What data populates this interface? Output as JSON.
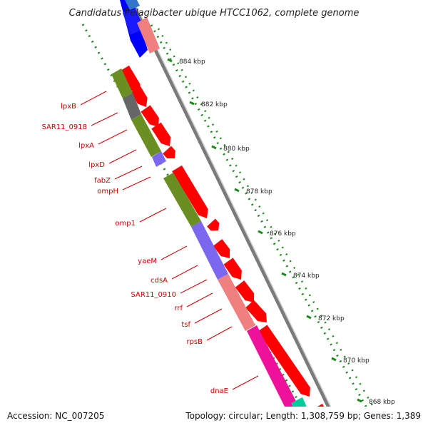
{
  "title": "Candidatus Pelagibacter ubique HTCC1062, complete genome",
  "footer": {
    "accession": "Accession: NC_007205",
    "summary": "Topology: circular; Length: 1,308,759 bp; Genes: 1,389"
  },
  "ticks": [
    {
      "label": "884 kbp"
    },
    {
      "label": "882 kbp"
    },
    {
      "label": "880 kbp"
    },
    {
      "label": "878 kbp"
    },
    {
      "label": "876 kbp"
    },
    {
      "label": "874 kbp"
    },
    {
      "label": "872 kbp"
    },
    {
      "label": "870 kbp"
    },
    {
      "label": "868 kbp"
    }
  ],
  "gene_labels": [
    {
      "name": "lpxB"
    },
    {
      "name": "SAR11_0918"
    },
    {
      "name": "lpxA"
    },
    {
      "name": "lpxD"
    },
    {
      "name": "fabZ"
    },
    {
      "name": "ompH"
    },
    {
      "name": "omp1"
    },
    {
      "name": "yaeM"
    },
    {
      "name": "cdsA"
    },
    {
      "name": "SAR11_0910"
    },
    {
      "name": "rrf"
    },
    {
      "name": "tsf"
    },
    {
      "name": "rpsB"
    },
    {
      "name": "dnaE"
    }
  ],
  "colors": {
    "cds_arrow": "#ff0000",
    "backbone": "#808080",
    "gc_dots": "#1a8a1a",
    "label_text": "#cc0000",
    "category_olive": "#6b8e23",
    "category_gray": "#666666",
    "category_slate": "#7b68ee",
    "category_salmon": "#f08080",
    "category_magenta": "#ee1199",
    "category_blue": "#0000ff",
    "category_teal": "#00cc99"
  }
}
